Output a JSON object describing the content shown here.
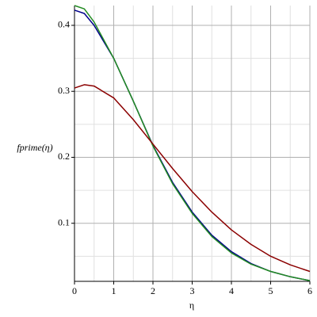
{
  "chart_data": {
    "type": "line",
    "x_label": "η",
    "y_label": "fprime(η)",
    "x": [
      0,
      0.25,
      0.5,
      1,
      1.5,
      2,
      2.5,
      3,
      3.5,
      4,
      4.5,
      5,
      5.5,
      6
    ],
    "series": [
      {
        "color": "#00008b",
        "values": [
          0.423,
          0.418,
          0.4,
          0.35,
          0.285,
          0.218,
          0.162,
          0.117,
          0.082,
          0.057,
          0.039,
          0.027,
          0.019,
          0.013
        ]
      },
      {
        "color": "#228b22",
        "values": [
          0.43,
          0.425,
          0.405,
          0.35,
          0.285,
          0.217,
          0.16,
          0.115,
          0.08,
          0.055,
          0.038,
          0.027,
          0.019,
          0.013
        ]
      },
      {
        "color": "#8b0000",
        "values": [
          0.305,
          0.31,
          0.308,
          0.29,
          0.257,
          0.22,
          0.183,
          0.148,
          0.117,
          0.09,
          0.068,
          0.05,
          0.037,
          0.027
        ]
      }
    ],
    "xlim": [
      0,
      6
    ],
    "ylim": [
      0.012,
      0.43
    ],
    "xticks": [
      0,
      1,
      2,
      3,
      4,
      5,
      6
    ],
    "yticks": [
      0.1,
      0.2,
      0.3,
      0.4
    ],
    "xminor": [
      0.5,
      1.5,
      2.5,
      3.5,
      4.5,
      5.5
    ],
    "yminor": [
      0.05,
      0.15,
      0.25,
      0.35
    ],
    "grid": true
  }
}
